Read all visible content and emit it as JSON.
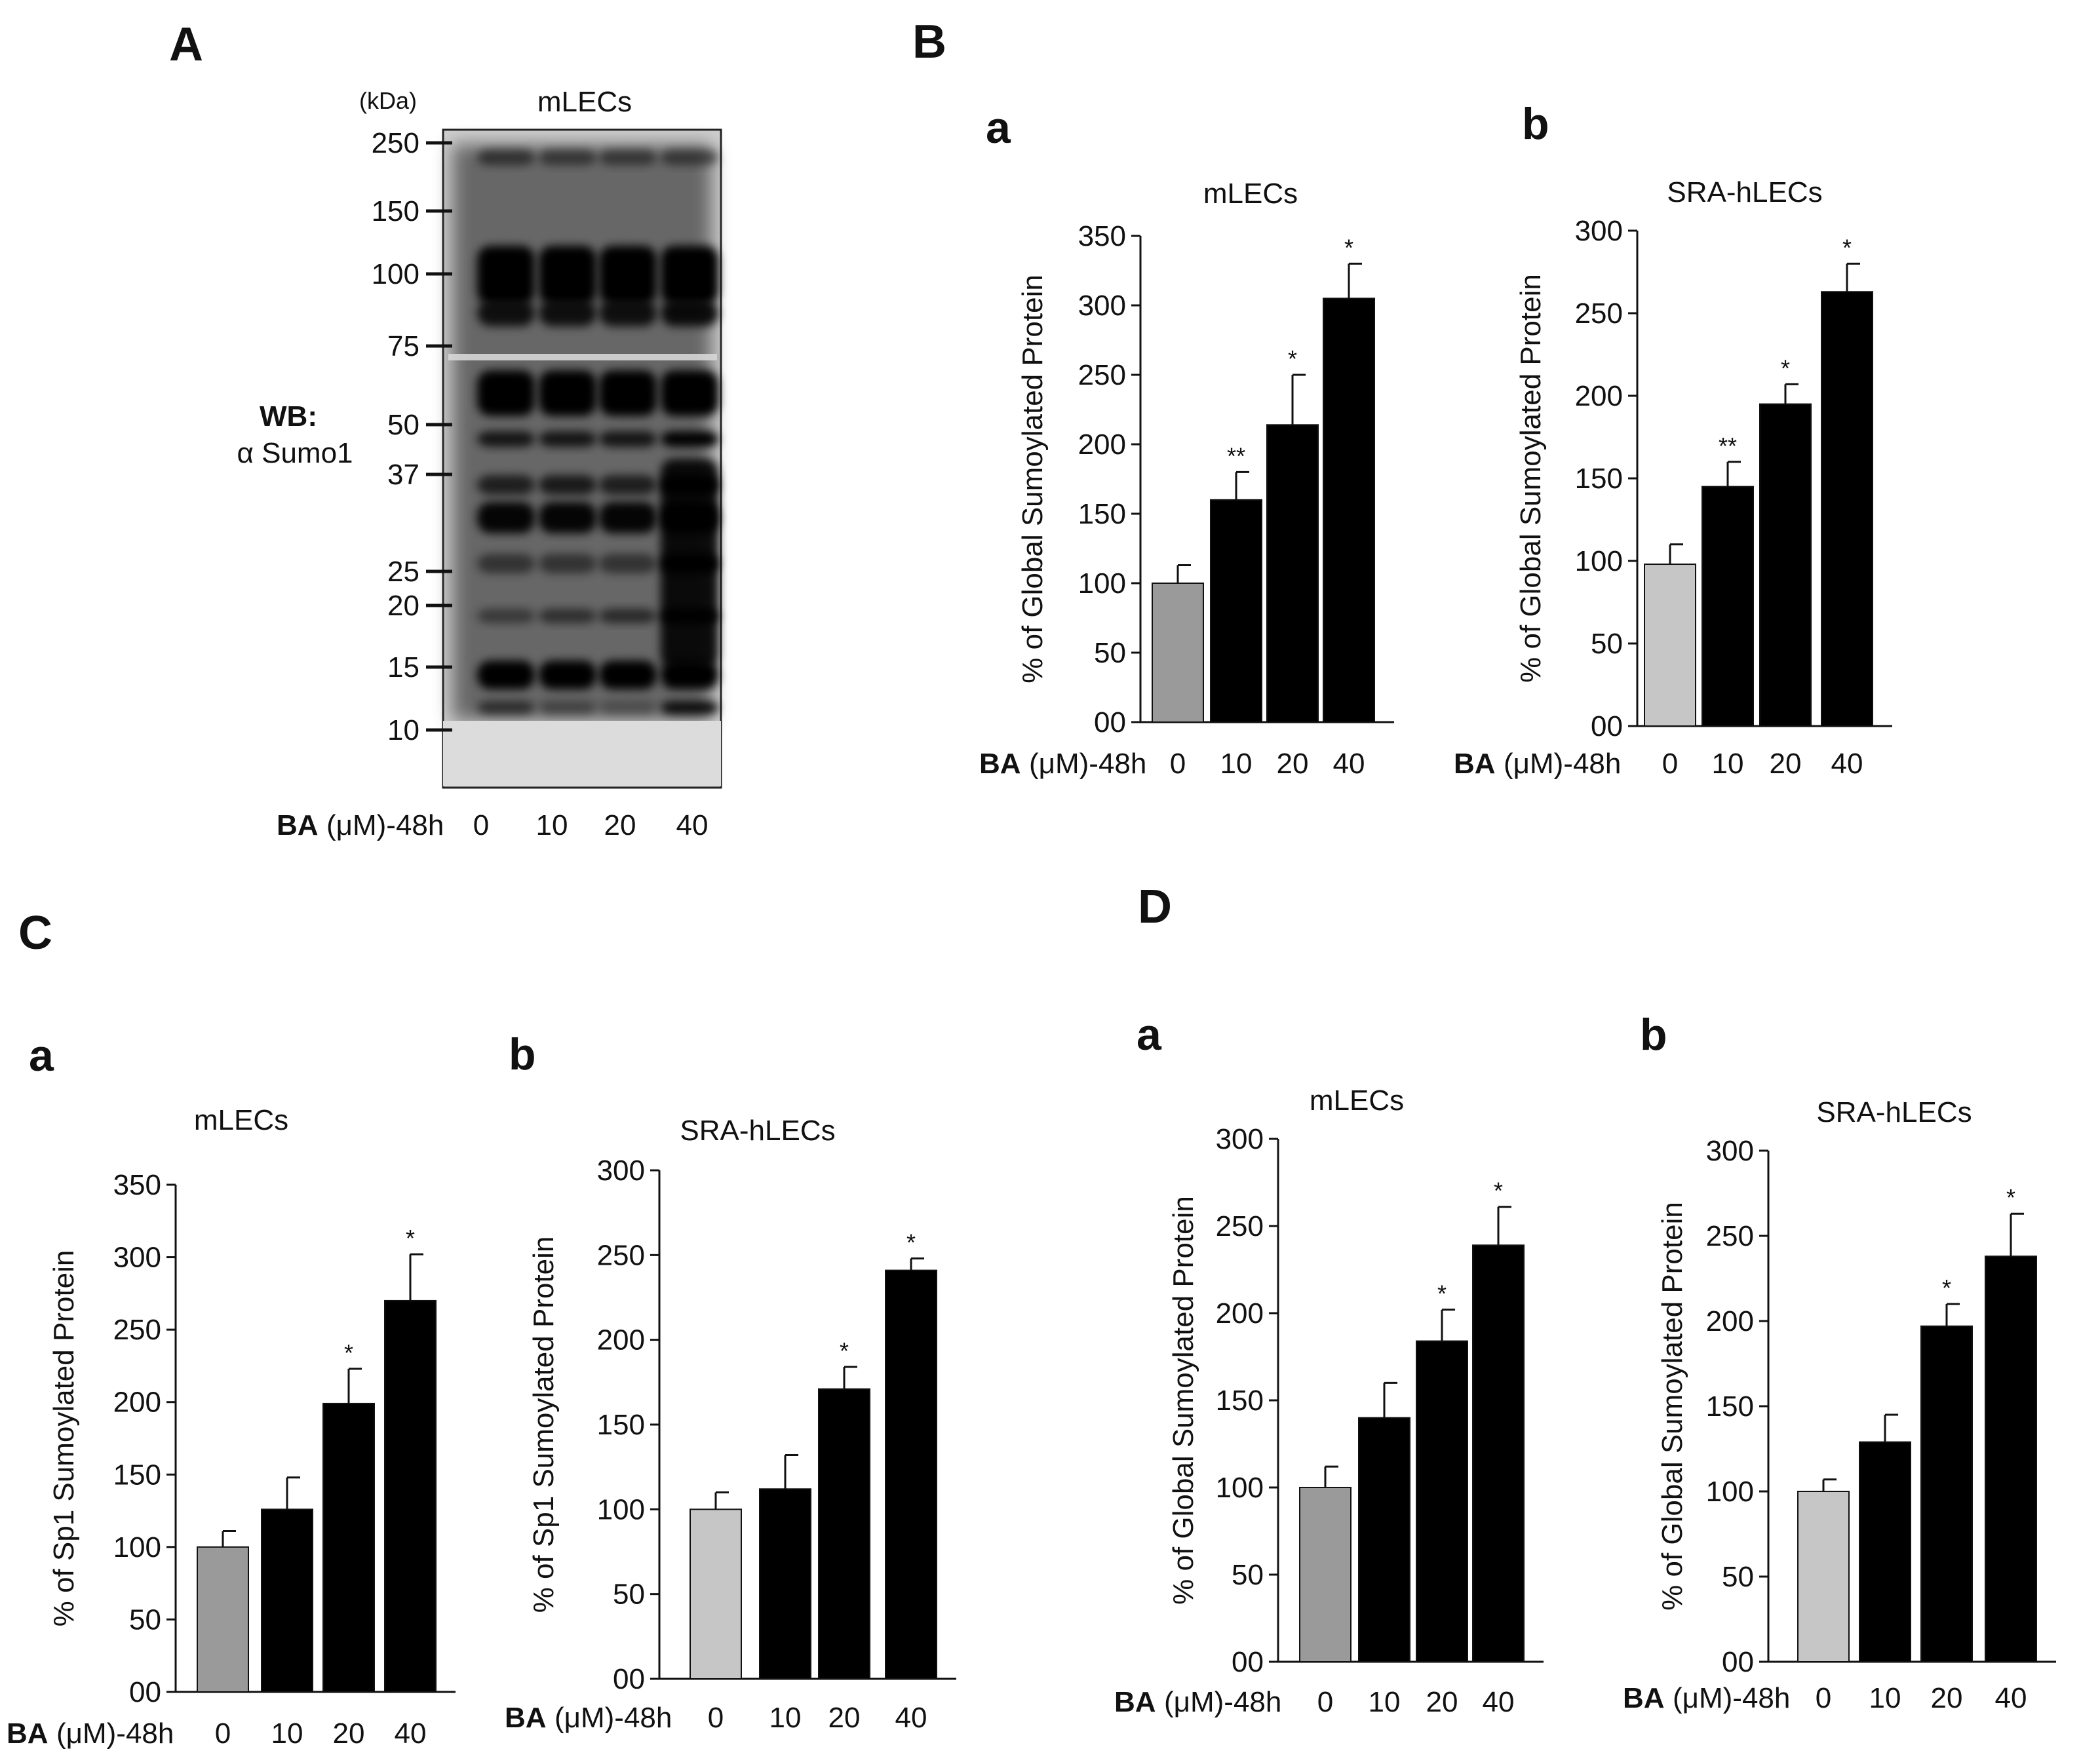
{
  "panels": {
    "A": {
      "label": "A",
      "unit": "(kDa)",
      "title": "mLECs",
      "wb_label": "WB:",
      "antibody": "α Sumo1",
      "mw_markers": [
        "250",
        "150",
        "100",
        "75",
        "50",
        "37",
        "25",
        "20",
        "15",
        "10"
      ],
      "xaxis_prefix_bold": "BA",
      "xaxis_prefix_rest": "(μM)-48h",
      "lanes": [
        "0",
        "10",
        "20",
        "40"
      ]
    },
    "B": {
      "label": "B"
    },
    "C": {
      "label": "C"
    },
    "D": {
      "label": "D"
    }
  },
  "colors": {
    "control_dark_gray": "#9a9a9a",
    "control_light_gray": "#c6c6c6",
    "treated": "#000000"
  },
  "chart_data": [
    {
      "id": "Ba",
      "panel": "B",
      "sub": "a",
      "type": "bar",
      "title": "mLECs",
      "ylabel": "% of Global  Sumoylated Protein",
      "xlabel_bold": "BA",
      "xlabel_rest": "(μM)-48h",
      "categories": [
        "0",
        "10",
        "20",
        "40"
      ],
      "values": [
        100,
        160,
        214,
        305
      ],
      "errors": [
        13,
        20,
        36,
        25
      ],
      "significance": [
        "",
        "**",
        "*",
        "*"
      ],
      "ylim": [
        0,
        350
      ],
      "yticks": [
        "00",
        "50",
        "100",
        "150",
        "200",
        "250",
        "300",
        "350"
      ],
      "control_color": "dark"
    },
    {
      "id": "Bb",
      "panel": "B",
      "sub": "b",
      "type": "bar",
      "title": "SRA-hLECs",
      "ylabel": "% of Global  Sumoylated Protein",
      "xlabel_bold": "BA",
      "xlabel_rest": "(μM)-48h",
      "categories": [
        "0",
        "10",
        "20",
        "40"
      ],
      "values": [
        98,
        145,
        195,
        263
      ],
      "errors": [
        12,
        15,
        12,
        17
      ],
      "significance": [
        "",
        "**",
        "*",
        "*"
      ],
      "ylim": [
        0,
        300
      ],
      "yticks": [
        "00",
        "50",
        "100",
        "150",
        "200",
        "250",
        "300"
      ],
      "control_color": "light"
    },
    {
      "id": "Ca",
      "panel": "C",
      "sub": "a",
      "type": "bar",
      "title": "mLECs",
      "ylabel": "% of Sp1  Sumoylated Protein",
      "xlabel_bold": "BA",
      "xlabel_rest": "(μM)-48h",
      "categories": [
        "0",
        "10",
        "20",
        "40"
      ],
      "values": [
        100,
        126,
        199,
        270
      ],
      "errors": [
        11,
        22,
        24,
        32
      ],
      "significance": [
        "",
        "",
        "*",
        "*"
      ],
      "ylim": [
        0,
        350
      ],
      "yticks": [
        "00",
        "50",
        "100",
        "150",
        "200",
        "250",
        "300",
        "350"
      ],
      "control_color": "dark"
    },
    {
      "id": "Cb",
      "panel": "C",
      "sub": "b",
      "type": "bar",
      "title": "SRA-hLECs",
      "ylabel": "% of Sp1  Sumoylated Protein",
      "xlabel_bold": "BA",
      "xlabel_rest": "(μM)-48h",
      "categories": [
        "0",
        "10",
        "20",
        "40"
      ],
      "values": [
        100,
        112,
        171,
        241
      ],
      "errors": [
        10,
        20,
        13,
        7
      ],
      "significance": [
        "",
        "",
        "*",
        "*"
      ],
      "ylim": [
        0,
        300
      ],
      "yticks": [
        "00",
        "50",
        "100",
        "150",
        "200",
        "250",
        "300"
      ],
      "control_color": "light"
    },
    {
      "id": "Da",
      "panel": "D",
      "sub": "a",
      "type": "bar",
      "title": "mLECs",
      "ylabel": "% of Global  Sumoylated Protein",
      "xlabel_bold": "BA",
      "xlabel_rest": "(μM)-48h",
      "categories": [
        "0",
        "10",
        "20",
        "40"
      ],
      "values": [
        100,
        140,
        184,
        239
      ],
      "errors": [
        12,
        20,
        18,
        22
      ],
      "significance": [
        "",
        "",
        "*",
        "*"
      ],
      "ylim": [
        0,
        300
      ],
      "yticks": [
        "00",
        "50",
        "100",
        "150",
        "200",
        "250",
        "300"
      ],
      "control_color": "dark"
    },
    {
      "id": "Db",
      "panel": "D",
      "sub": "b",
      "type": "bar",
      "title": "SRA-hLECs",
      "ylabel": "% of Global  Sumoylated Protein",
      "xlabel_bold": "BA",
      "xlabel_rest": "(μM)-48h",
      "categories": [
        "0",
        "10",
        "20",
        "40"
      ],
      "values": [
        100,
        129,
        197,
        238
      ],
      "errors": [
        7,
        16,
        13,
        25
      ],
      "significance": [
        "",
        "",
        "*",
        "*"
      ],
      "ylim": [
        0,
        300
      ],
      "yticks": [
        "00",
        "50",
        "100",
        "150",
        "200",
        "250",
        "300"
      ],
      "control_color": "light"
    }
  ]
}
